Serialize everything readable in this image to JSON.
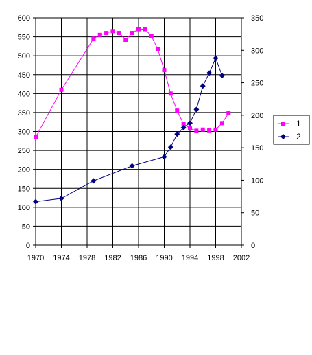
{
  "chart_data": {
    "type": "line",
    "title": "",
    "xlabel": "",
    "ylabel": "",
    "xlim": [
      1970,
      2002
    ],
    "x_ticks": [
      "1970",
      "1974",
      "1978",
      "1982",
      "1986",
      "1990",
      "1994",
      "1998",
      "2002"
    ],
    "y_left_lim": [
      0,
      600
    ],
    "y_left_ticks": [
      "0",
      "50",
      "100",
      "150",
      "200",
      "250",
      "300",
      "350",
      "400",
      "450",
      "500",
      "550",
      "600"
    ],
    "y_right_lim": [
      0,
      350
    ],
    "y_right_ticks": [
      "0",
      "50",
      "100",
      "150",
      "200",
      "250",
      "300",
      "350"
    ],
    "grid": "vertical lines at x ticks plus horizontal lines at left-axis ticks",
    "legend_position": "right",
    "series": [
      {
        "name": "1",
        "axis": "left",
        "color": "#FF00FF",
        "marker": "square",
        "x": [
          1970,
          1974,
          1979,
          1980,
          1981,
          1982,
          1983,
          1984,
          1985,
          1986,
          1987,
          1988,
          1989,
          1990,
          1991,
          1992,
          1993,
          1994,
          1995,
          1996,
          1997,
          1998,
          1999,
          2000
        ],
        "y": [
          285,
          410,
          545,
          555,
          560,
          565,
          560,
          542,
          560,
          570,
          570,
          552,
          517,
          462,
          400,
          355,
          320,
          308,
          302,
          305,
          303,
          305,
          322,
          348
        ]
      },
      {
        "name": "2",
        "axis": "right",
        "color": "#000080",
        "marker": "diamond",
        "x": [
          1970,
          1974,
          1979,
          1985,
          1990,
          1991,
          1992,
          1993,
          1994,
          1995,
          1996,
          1997,
          1998,
          1999
        ],
        "y": [
          67,
          72,
          99,
          122,
          136,
          151,
          171,
          181,
          188,
          209,
          245,
          265,
          288,
          261
        ]
      }
    ]
  }
}
